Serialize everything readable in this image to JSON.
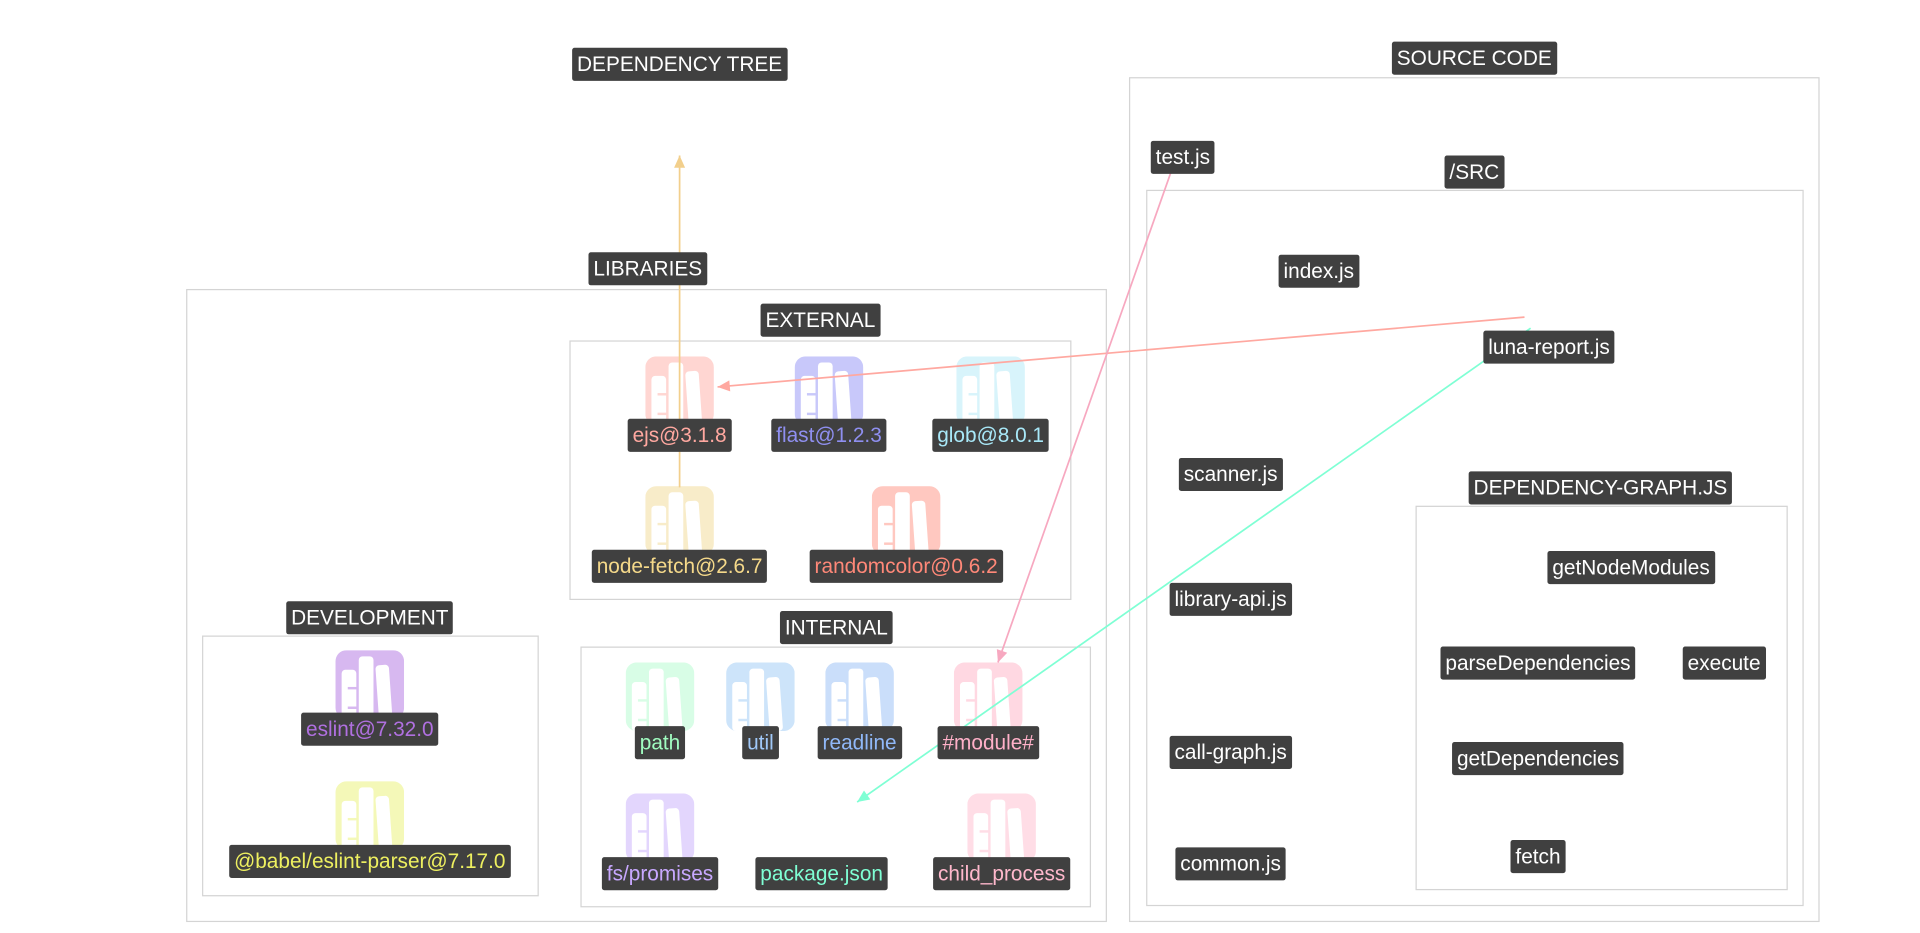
{
  "title": "DEPENDENCY TREE",
  "groups": {
    "source_code": "SOURCE CODE",
    "src": "/SRC",
    "dependency_graph_js": "DEPENDENCY-GRAPH.JS",
    "libraries": "LIBRARIES",
    "external": "EXTERNAL",
    "internal": "INTERNAL",
    "development": "DEVELOPMENT"
  },
  "files": {
    "test": "test.js",
    "index": "index.js",
    "luna_report": "luna-report.js",
    "scanner": "scanner.js",
    "library_api": "library-api.js",
    "call_graph": "call-graph.js",
    "common": "common.js"
  },
  "functions": {
    "getNodeModules": "getNodeModules",
    "parseDependencies": "parseDependencies",
    "execute": "execute",
    "getDependencies": "getDependencies",
    "fetch": "fetch"
  },
  "libraries": {
    "ejs": {
      "label": "ejs@3.1.8",
      "color": "#ffa8a0",
      "icon_color": "#ffd6d2",
      "icon": "books-icon"
    },
    "flast": {
      "label": "flast@1.2.3",
      "color": "#8f8ff0",
      "icon_color": "#c8c8fa",
      "icon": "books-icon"
    },
    "glob": {
      "label": "glob@8.0.1",
      "color": "#a8e8f8",
      "icon_color": "#d8f4fb",
      "icon": "books-icon"
    },
    "node_fetch": {
      "label": "node-fetch@2.6.7",
      "color": "#f5d98a",
      "icon_color": "#f8ecc9",
      "icon": "books-icon"
    },
    "randomcolor": {
      "label": "randomcolor@0.6.2",
      "color": "#ff8878",
      "icon_color": "#ffc8c0",
      "icon": "books-icon"
    },
    "eslint": {
      "label": "eslint@7.32.0",
      "color": "#b070e0",
      "icon_color": "#d7b8f0",
      "icon": "books-icon"
    },
    "babel": {
      "label": "@babel/eslint-parser@7.17.0",
      "color": "#eef060",
      "icon_color": "#f4f8b8",
      "icon": "books-icon"
    },
    "path": {
      "label": "path",
      "color": "#a0fcc0",
      "icon_color": "#d8fde6",
      "icon": "books-icon"
    },
    "util": {
      "label": "util",
      "color": "#a0c8f8",
      "icon_color": "#cde4fa",
      "icon": "books-icon"
    },
    "readline": {
      "label": "readline",
      "color": "#90b8f8",
      "icon_color": "#cadefa",
      "icon": "books-icon"
    },
    "module": {
      "label": "#module#",
      "color": "#ffb0c8",
      "icon_color": "#ffd8e2",
      "icon": "books-icon"
    },
    "fs_promises": {
      "label": "fs/promises",
      "color": "#c8a8ff",
      "icon_color": "#e3d6fd",
      "icon": "books-icon"
    },
    "package_json": {
      "label": "package.json",
      "color": "#7fffd4"
    },
    "child_process": {
      "label": "child_process",
      "color": "#ffb8cc",
      "icon_color": "#ffdde6",
      "icon": "books-icon"
    }
  },
  "edge_colors": {
    "node_fetch_up": "#f2cf8c",
    "luna_to_ejs": "#ffa8a0",
    "test_to_module": "#f7a8c0",
    "luna_to_package": "#7fffd4"
  }
}
